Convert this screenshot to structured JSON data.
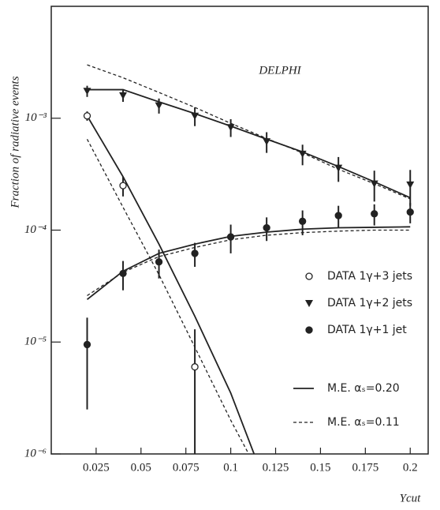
{
  "chart_data": {
    "type": "scatter",
    "annotation": "DELPHI",
    "xlabel": "Ycut",
    "ylabel": "Fraction of radiative events",
    "log_y": true,
    "xlim": [
      0,
      0.21
    ],
    "ylim": [
      1e-06,
      0.01
    ],
    "xticks": [
      0.025,
      0.05,
      0.075,
      0.1,
      0.125,
      0.15,
      0.175,
      0.2
    ],
    "yticks": [
      {
        "value": 1e-06,
        "label": "10⁻⁶"
      },
      {
        "value": 1e-05,
        "label": "10⁻⁵"
      },
      {
        "value": 0.0001,
        "label": "10⁻⁴"
      },
      {
        "value": 0.001,
        "label": "10⁻³"
      }
    ],
    "series": [
      {
        "name": "DATA 1γ+3 jets",
        "marker": "open-circle",
        "color": "#222222",
        "x": [
          0.02,
          0.04,
          0.08
        ],
        "values": [
          0.00105,
          0.00025,
          6e-06
        ],
        "errors": [
          0.0001,
          5e-05,
          7e-06
        ]
      },
      {
        "name": "DATA 1γ+2 jets",
        "marker": "triangle-down",
        "color": "#222222",
        "x": [
          0.02,
          0.04,
          0.06,
          0.08,
          0.1,
          0.12,
          0.14,
          0.16,
          0.18,
          0.2
        ],
        "values": [
          0.00175,
          0.0016,
          0.0013,
          0.00105,
          0.00083,
          0.00062,
          0.00048,
          0.00036,
          0.00026,
          0.000255
        ],
        "errors": [
          0.0002,
          0.0002,
          0.0002,
          0.0002,
          0.00015,
          0.00013,
          0.0001,
          9e-05,
          8e-05,
          9e-05
        ]
      },
      {
        "name": "DATA 1γ+1 jet",
        "marker": "circle",
        "color": "#222222",
        "x": [
          0.02,
          0.04,
          0.06,
          0.08,
          0.1,
          0.12,
          0.14,
          0.16,
          0.18,
          0.2
        ],
        "values": [
          9.5e-06,
          4.1e-05,
          5.2e-05,
          6.2e-05,
          8.7e-05,
          0.000105,
          0.00012,
          0.000135,
          0.00014,
          0.000145
        ],
        "errors": [
          7e-06,
          1.2e-05,
          1.5e-05,
          1.5e-05,
          2.5e-05,
          2.5e-05,
          3e-05,
          3e-05,
          3e-05,
          3e-05
        ]
      }
    ],
    "model_curves": [
      {
        "name": "M.E. αₛ=0.20",
        "dashed": false,
        "color": "#222222",
        "curves": [
          {
            "x": [
              0.02,
              0.04,
              0.06,
              0.08,
              0.1,
              0.12,
              0.14,
              0.16,
              0.18,
              0.2
            ],
            "values": [
              0.0018,
              0.0018,
              0.0014,
              0.0011,
              0.00085,
              0.00065,
              0.0005,
              0.00037,
              0.00027,
              0.000195
            ]
          },
          {
            "x": [
              0.02,
              0.04,
              0.06,
              0.08,
              0.1,
              0.113
            ],
            "values": [
              0.00105,
              0.0003,
              7.5e-05,
              1.7e-05,
              3.5e-06,
              1e-06
            ]
          },
          {
            "x": [
              0.02,
              0.04,
              0.06,
              0.08,
              0.1,
              0.12,
              0.14,
              0.16,
              0.18,
              0.2
            ],
            "values": [
              2.4e-05,
              4.3e-05,
              6.2e-05,
              7.5e-05,
              8.8e-05,
              9.6e-05,
              0.000102,
              0.000105,
              0.000106,
              0.000107
            ]
          }
        ]
      },
      {
        "name": "M.E. αₛ=0.11",
        "dashed": true,
        "color": "#222222",
        "curves": [
          {
            "x": [
              0.02,
              0.04,
              0.06,
              0.08,
              0.1,
              0.12,
              0.14,
              0.16,
              0.18,
              0.2
            ],
            "values": [
              0.003,
              0.0023,
              0.0017,
              0.00125,
              0.0009,
              0.00066,
              0.00049,
              0.00035,
              0.00026,
              0.00019
            ]
          },
          {
            "x": [
              0.02,
              0.04,
              0.06,
              0.08,
              0.1,
              0.11
            ],
            "values": [
              0.00065,
              0.00016,
              4e-05,
              9e-06,
              2e-06,
              1e-06
            ]
          },
          {
            "x": [
              0.02,
              0.04,
              0.06,
              0.08,
              0.1,
              0.12,
              0.14,
              0.16,
              0.18,
              0.2
            ],
            "values": [
              2.6e-05,
              4.2e-05,
              5.8e-05,
              7e-05,
              8.2e-05,
              9e-05,
              9.5e-05,
              9.8e-05,
              0.0001,
              0.0001
            ]
          }
        ]
      }
    ]
  }
}
